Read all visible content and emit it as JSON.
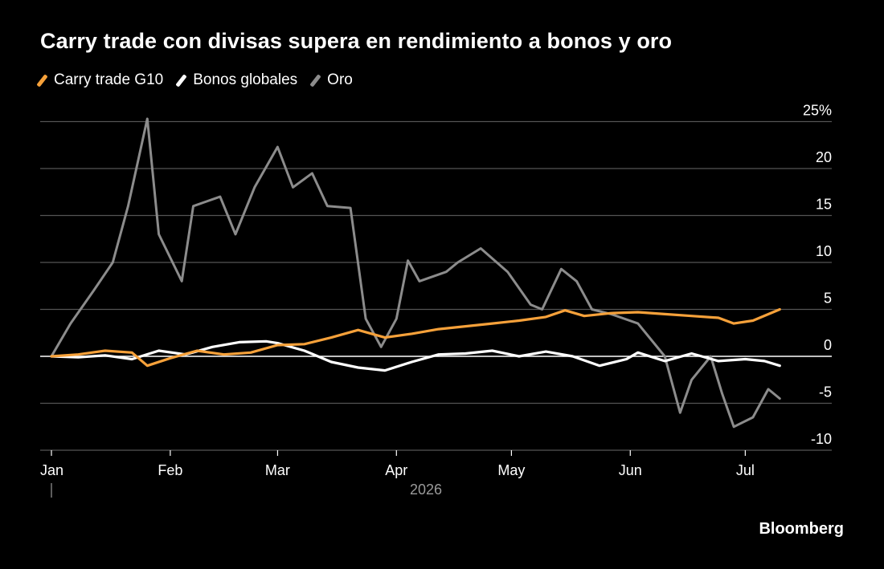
{
  "chart_data": {
    "type": "line",
    "title": "Carry trade con divisas supera en rendimiento a bonos y oro",
    "xlabel": "",
    "ylabel": "",
    "year_label": "2026",
    "x_ticks": [
      "Jan",
      "Feb",
      "Mar",
      "Apr",
      "May",
      "Jun",
      "Jul"
    ],
    "y_ticks": [
      "25%",
      "20",
      "15",
      "10",
      "5",
      "0",
      "-5",
      "-10"
    ],
    "ylim": [
      -10,
      25
    ],
    "x_domain": [
      "2026-01-01",
      "2026-07-10"
    ],
    "grid": true,
    "legend_position": "top-left",
    "series": [
      {
        "name": "Carry trade G10",
        "color": "#f6a13a",
        "points": [
          [
            "2026-01-01",
            0.0
          ],
          [
            "2026-01-08",
            0.2
          ],
          [
            "2026-01-15",
            0.6
          ],
          [
            "2026-01-22",
            0.4
          ],
          [
            "2026-01-26",
            -1.0
          ],
          [
            "2026-02-01",
            -0.2
          ],
          [
            "2026-02-08",
            0.6
          ],
          [
            "2026-02-15",
            0.2
          ],
          [
            "2026-02-22",
            0.4
          ],
          [
            "2026-03-01",
            1.2
          ],
          [
            "2026-03-08",
            1.3
          ],
          [
            "2026-03-15",
            2.0
          ],
          [
            "2026-03-22",
            2.8
          ],
          [
            "2026-03-29",
            2.0
          ],
          [
            "2026-04-05",
            2.4
          ],
          [
            "2026-04-12",
            2.9
          ],
          [
            "2026-04-19",
            3.2
          ],
          [
            "2026-04-26",
            3.5
          ],
          [
            "2026-05-03",
            3.8
          ],
          [
            "2026-05-10",
            4.2
          ],
          [
            "2026-05-15",
            4.9
          ],
          [
            "2026-05-20",
            4.3
          ],
          [
            "2026-05-27",
            4.6
          ],
          [
            "2026-06-03",
            4.7
          ],
          [
            "2026-06-10",
            4.5
          ],
          [
            "2026-06-17",
            4.3
          ],
          [
            "2026-06-24",
            4.1
          ],
          [
            "2026-06-28",
            3.5
          ],
          [
            "2026-07-03",
            3.8
          ],
          [
            "2026-07-10",
            5.0
          ]
        ]
      },
      {
        "name": "Bonos globales",
        "color": "#ffffff",
        "points": [
          [
            "2026-01-01",
            0.0
          ],
          [
            "2026-01-08",
            -0.1
          ],
          [
            "2026-01-15",
            0.1
          ],
          [
            "2026-01-22",
            -0.3
          ],
          [
            "2026-01-29",
            0.6
          ],
          [
            "2026-02-05",
            0.2
          ],
          [
            "2026-02-12",
            1.0
          ],
          [
            "2026-02-19",
            1.5
          ],
          [
            "2026-02-26",
            1.6
          ],
          [
            "2026-03-01",
            1.4
          ],
          [
            "2026-03-08",
            0.6
          ],
          [
            "2026-03-15",
            -0.6
          ],
          [
            "2026-03-22",
            -1.2
          ],
          [
            "2026-03-29",
            -1.5
          ],
          [
            "2026-04-05",
            -0.6
          ],
          [
            "2026-04-12",
            0.2
          ],
          [
            "2026-04-19",
            0.3
          ],
          [
            "2026-04-26",
            0.6
          ],
          [
            "2026-05-03",
            0.0
          ],
          [
            "2026-05-10",
            0.5
          ],
          [
            "2026-05-17",
            0.0
          ],
          [
            "2026-05-24",
            -1.0
          ],
          [
            "2026-05-31",
            -0.3
          ],
          [
            "2026-06-03",
            0.4
          ],
          [
            "2026-06-10",
            -0.5
          ],
          [
            "2026-06-17",
            0.3
          ],
          [
            "2026-06-24",
            -0.5
          ],
          [
            "2026-07-01",
            -0.3
          ],
          [
            "2026-07-06",
            -0.5
          ],
          [
            "2026-07-10",
            -1.0
          ]
        ]
      },
      {
        "name": "Oro",
        "color": "#8c8c8c",
        "points": [
          [
            "2026-01-01",
            0.0
          ],
          [
            "2026-01-06",
            3.5
          ],
          [
            "2026-01-12",
            7.0
          ],
          [
            "2026-01-17",
            10.0
          ],
          [
            "2026-01-21",
            16.0
          ],
          [
            "2026-01-26",
            25.3
          ],
          [
            "2026-01-29",
            13.0
          ],
          [
            "2026-02-04",
            8.0
          ],
          [
            "2026-02-07",
            16.0
          ],
          [
            "2026-02-14",
            17.0
          ],
          [
            "2026-02-18",
            13.0
          ],
          [
            "2026-02-23",
            18.0
          ],
          [
            "2026-03-01",
            22.3
          ],
          [
            "2026-03-05",
            18.0
          ],
          [
            "2026-03-10",
            19.5
          ],
          [
            "2026-03-14",
            16.0
          ],
          [
            "2026-03-20",
            15.8
          ],
          [
            "2026-03-24",
            4.0
          ],
          [
            "2026-03-28",
            1.0
          ],
          [
            "2026-04-01",
            4.0
          ],
          [
            "2026-04-04",
            10.2
          ],
          [
            "2026-04-07",
            8.0
          ],
          [
            "2026-04-14",
            9.0
          ],
          [
            "2026-04-17",
            10.0
          ],
          [
            "2026-04-23",
            11.5
          ],
          [
            "2026-04-30",
            9.0
          ],
          [
            "2026-05-06",
            5.5
          ],
          [
            "2026-05-09",
            5.0
          ],
          [
            "2026-05-14",
            9.3
          ],
          [
            "2026-05-18",
            8.0
          ],
          [
            "2026-05-22",
            5.0
          ],
          [
            "2026-05-27",
            4.5
          ],
          [
            "2026-06-03",
            3.5
          ],
          [
            "2026-06-10",
            0.0
          ],
          [
            "2026-06-14",
            -6.0
          ],
          [
            "2026-06-17",
            -2.5
          ],
          [
            "2026-06-22",
            0.0
          ],
          [
            "2026-06-25",
            -4.0
          ],
          [
            "2026-06-28",
            -7.5
          ],
          [
            "2026-07-03",
            -6.5
          ],
          [
            "2026-07-07",
            -3.5
          ],
          [
            "2026-07-10",
            -4.5
          ]
        ]
      }
    ]
  },
  "source": "Bloomberg"
}
